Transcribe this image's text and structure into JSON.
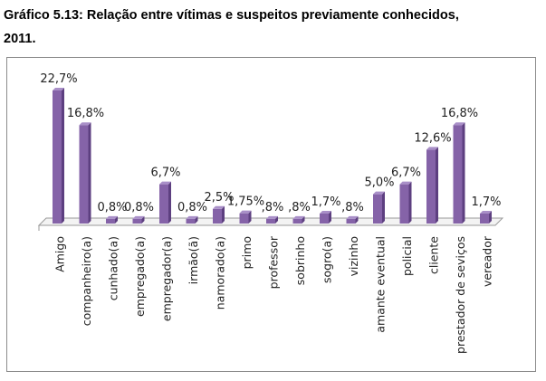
{
  "title_line1": "Gráfico 5.13: Relação entre vítimas e suspeitos previamente conhecidos,",
  "title_line2": "2011.",
  "colors": {
    "bar": "#8563a8",
    "bar_light": "#a98fc8",
    "bar_dark": "#5d3f80",
    "axis": "#9a9a9a"
  },
  "chart_data": {
    "type": "bar",
    "title": "Relação entre vítimas e suspeitos previamente conhecidos, 2011.",
    "categories": [
      "Amigo",
      "companheiro(a)",
      "cunhado(a)",
      "empregado(a)",
      "empregador(a)",
      "irmão(ã)",
      "namorado(a)",
      "primo",
      "professor",
      "sobrinho",
      "sogro(a)",
      "vizinho",
      "amante eventual",
      "policial",
      "cliente",
      "prestador de seviços",
      "vereador"
    ],
    "values": [
      22.7,
      16.8,
      0.8,
      0.8,
      6.7,
      0.8,
      2.5,
      1.75,
      0.8,
      0.8,
      1.7,
      0.8,
      5.0,
      6.7,
      12.6,
      16.8,
      1.7
    ],
    "data_labels": [
      "22,7%",
      "16,8%",
      "0,8%",
      "0,8%",
      "6,7%",
      "0,8%",
      "2,5%",
      "1,75%",
      ",8%",
      ",8%",
      "1,7%",
      ",8%",
      "5,0%",
      "6,7%",
      "12,6%",
      "16,8%",
      "1,7%"
    ],
    "xlabel": "",
    "ylabel": "",
    "ylim": [
      0,
      24
    ],
    "grid": false,
    "legend": "none"
  }
}
